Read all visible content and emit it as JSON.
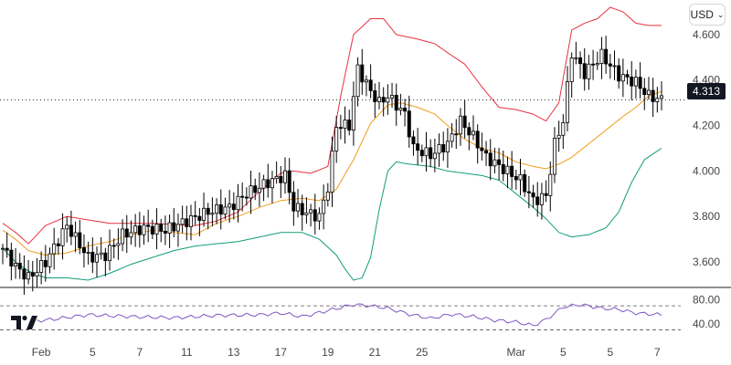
{
  "currency": {
    "label": "USD",
    "icon": "chevron-down-icon"
  },
  "price_tag": "4.313",
  "logo": {
    "name": "tradingview-logo",
    "text": "TV"
  },
  "colors": {
    "up": "#ffffff",
    "down": "#000000",
    "wick": "#000000",
    "upper_band": "#e8303f",
    "middle_band": "#f29b1d",
    "lower_band": "#139c7b",
    "rsi_line": "#7e57c2",
    "grid": "#555555"
  },
  "chart_data": {
    "type": "candlestick",
    "y_ticks": [
      "3.600",
      "3.800",
      "4.000",
      "4.200",
      "4.400",
      "4.600"
    ],
    "ylim": [
      3.5,
      4.72
    ],
    "x_ticks": [
      {
        "label": "Feb",
        "i": 9
      },
      {
        "label": "5",
        "i": 21
      },
      {
        "label": "7",
        "i": 32
      },
      {
        "label": "11",
        "i": 43
      },
      {
        "label": "13",
        "i": 54
      },
      {
        "label": "17",
        "i": 65
      },
      {
        "label": "19",
        "i": 76
      },
      {
        "label": "21",
        "i": 87
      },
      {
        "label": "25",
        "i": 98
      },
      {
        "label": "Mar",
        "i": 120
      },
      {
        "label": "5",
        "i": 131
      },
      {
        "label": "5",
        "i": 142
      },
      {
        "label": "7",
        "i": 153
      }
    ],
    "current_price": 4.313,
    "rsi": {
      "ticks": [
        "80.00",
        "40.00"
      ],
      "levels": [
        70,
        30
      ],
      "ylim": [
        20,
        90
      ]
    }
  }
}
